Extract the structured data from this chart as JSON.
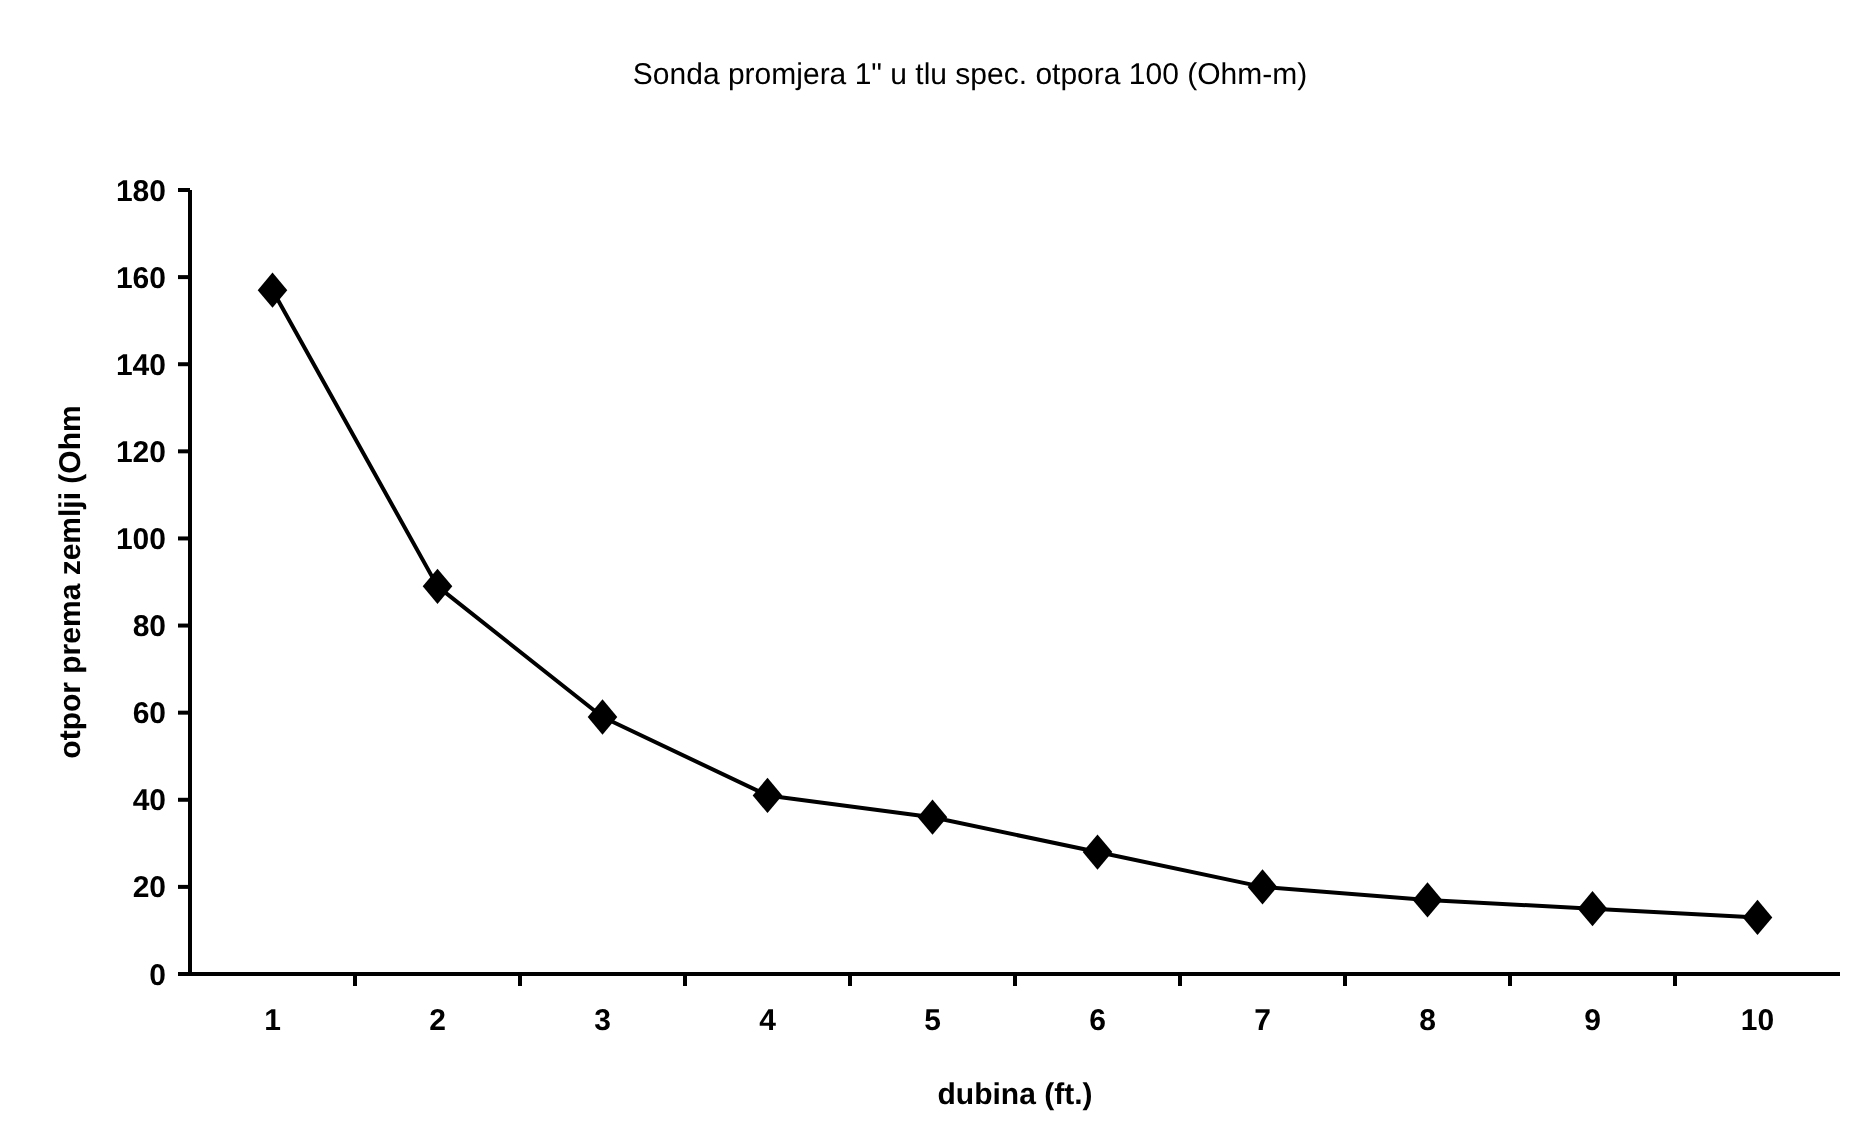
{
  "chart_data": {
    "type": "line",
    "title": "Sonda promjera 1\" u tlu spec. otpora 100 (Ohm-m)",
    "xlabel": "dubina (ft.)",
    "ylabel": "otpor prema zemlji (Ohm",
    "categories": [
      "1",
      "2",
      "3",
      "4",
      "5",
      "6",
      "7",
      "8",
      "9",
      "10"
    ],
    "series": [
      {
        "color": "#000000",
        "values": [
          157,
          89,
          59,
          41,
          36,
          28,
          20,
          17,
          15,
          13
        ]
      }
    ],
    "ylim": [
      0,
      180
    ],
    "yticks": [
      0,
      20,
      40,
      60,
      80,
      100,
      120,
      140,
      160,
      180
    ],
    "grid": false,
    "marker": "diamond",
    "line_style": "solid"
  }
}
